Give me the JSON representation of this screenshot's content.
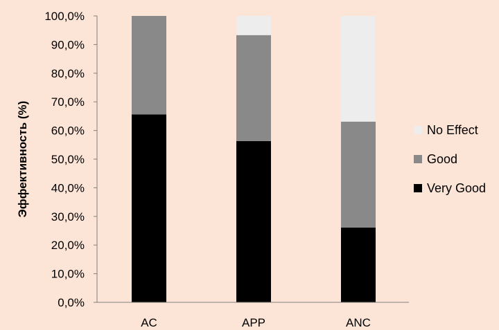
{
  "chart_data": {
    "type": "bar",
    "stacked": true,
    "categories": [
      "AC",
      "APP",
      "ANC"
    ],
    "series": [
      {
        "name": "Very Good",
        "values": [
          65.6,
          56.3,
          26.1
        ],
        "color": "#000000"
      },
      {
        "name": "Good",
        "values": [
          34.4,
          37.0,
          37.0
        ],
        "color": "#898989"
      },
      {
        "name": "No Effect",
        "values": [
          0.0,
          6.7,
          36.9
        ],
        "color": "#ededed"
      }
    ],
    "ylim": [
      0,
      100
    ],
    "yticks": [
      0,
      10,
      20,
      30,
      40,
      50,
      60,
      70,
      80,
      90,
      100
    ],
    "ytick_labels": [
      "0,0%",
      "10,0%",
      "20,0%",
      "30,0%",
      "40,0%",
      "50,0%",
      "60,0%",
      "70,0%",
      "80,0%",
      "90,0%",
      "100,0%"
    ],
    "ylabel": "Эффективность  (%)",
    "xlabel": "",
    "title": "",
    "grid": false,
    "legend_position": "right",
    "legend_order": [
      "No Effect",
      "Good",
      "Very Good"
    ]
  }
}
